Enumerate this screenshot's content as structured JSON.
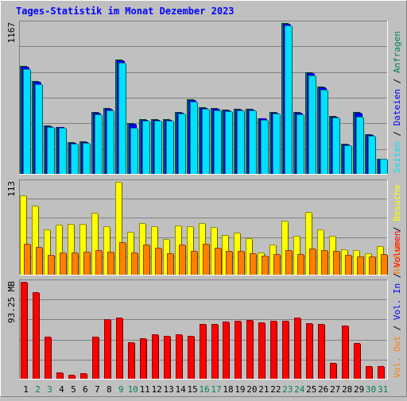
{
  "title": "Tages-Statistik im Monat Dezember 2023",
  "days": [
    "1",
    "2",
    "3",
    "4",
    "5",
    "6",
    "7",
    "8",
    "9",
    "10",
    "11",
    "12",
    "13",
    "14",
    "15",
    "16",
    "17",
    "18",
    "19",
    "20",
    "21",
    "22",
    "23",
    "24",
    "25",
    "26",
    "27",
    "28",
    "29",
    "30",
    "31"
  ],
  "weekend_days": [
    "2",
    "3",
    "9",
    "10",
    "16",
    "17",
    "23",
    "24",
    "30",
    "31"
  ],
  "colors": {
    "background": "#c0c0c0",
    "frame_dark": "#808080",
    "title": "#0000ff",
    "anfragen": "#00805c",
    "dateien": "#0000ff",
    "seiten": "#00e0ff",
    "besuche": "#ffff00",
    "rechner": "#ff8000",
    "vol_out": "#ff8000",
    "vol_in": "#0000ff",
    "volumen": "#ff0000",
    "weekend_label": "#00805c",
    "weekday_label": "#000000"
  },
  "chart_data": [
    {
      "type": "bar",
      "name": "hits",
      "ymax_label": "1167",
      "ylim": [
        0,
        1167
      ],
      "legend": [
        {
          "text": "Anfragen",
          "color": "#00805c"
        },
        {
          "text": "Dateien",
          "color": "#0000ff"
        },
        {
          "text": "Seiten",
          "color": "#00e0ff"
        }
      ],
      "series": [
        {
          "name": "Anfragen",
          "values": [
            836,
            716,
            373,
            365,
            243,
            250,
            479,
            508,
            887,
            394,
            421,
            423,
            421,
            480,
            578,
            515,
            507,
            496,
            503,
            503,
            432,
            480,
            1167,
            480,
            784,
            676,
            447,
            232,
            480,
            308,
            116
          ]
        },
        {
          "name": "Dateien",
          "values": [
            830,
            710,
            370,
            360,
            240,
            245,
            475,
            505,
            880,
            390,
            418,
            420,
            418,
            476,
            574,
            511,
            503,
            492,
            500,
            500,
            428,
            476,
            1160,
            476,
            780,
            670,
            443,
            228,
            476,
            300,
            112
          ]
        },
        {
          "name": "Seiten",
          "values": [
            811,
            695,
            365,
            356,
            236,
            242,
            463,
            490,
            860,
            358,
            413,
            413,
            411,
            465,
            560,
            503,
            492,
            483,
            492,
            492,
            418,
            468,
            1147,
            462,
            759,
            650,
            434,
            223,
            441,
            295,
            115
          ]
        }
      ]
    },
    {
      "type": "bar",
      "name": "visits",
      "ymax_label": "113",
      "ylim": [
        0,
        113
      ],
      "legend": [
        {
          "text": "Besuche",
          "color": "#ffff00"
        },
        {
          "text": "Rechner",
          "color": "#ff8000"
        }
      ],
      "series": [
        {
          "name": "Besuche",
          "values": [
            97,
            84,
            55,
            61,
            62,
            62,
            75,
            59,
            113,
            52,
            63,
            59,
            43,
            60,
            59,
            63,
            58,
            48,
            51,
            44,
            27,
            37,
            66,
            47,
            76,
            55,
            47,
            31,
            30,
            26,
            35
          ]
        },
        {
          "name": "Rechner",
          "values": [
            38,
            34,
            24,
            27,
            27,
            28,
            30,
            28,
            40,
            27,
            37,
            33,
            26,
            37,
            29,
            38,
            33,
            29,
            29,
            26,
            23,
            25,
            30,
            25,
            32,
            30,
            29,
            24,
            22,
            22,
            25
          ]
        }
      ]
    },
    {
      "type": "bar",
      "name": "volume",
      "ymax_label": "93.25 MB",
      "ylim": [
        0,
        93.25
      ],
      "legend": [
        {
          "text": "Volumen",
          "color": "#ff0000"
        },
        {
          "text": "Vol. In",
          "color": "#0000ff"
        },
        {
          "text": "Vol. Out",
          "color": "#ff8000"
        }
      ],
      "series": [
        {
          "name": "Volumen",
          "values": [
            93.25,
            83.5,
            40.5,
            6,
            3.5,
            5.5,
            40.5,
            57,
            58.5,
            35.5,
            39,
            42.5,
            41.5,
            43,
            41,
            53,
            52.5,
            55,
            56,
            56.5,
            54.5,
            56,
            56,
            59,
            53.5,
            53,
            15.5,
            51,
            34.5,
            12,
            12.5
          ]
        }
      ]
    }
  ],
  "legend_separator": " / "
}
